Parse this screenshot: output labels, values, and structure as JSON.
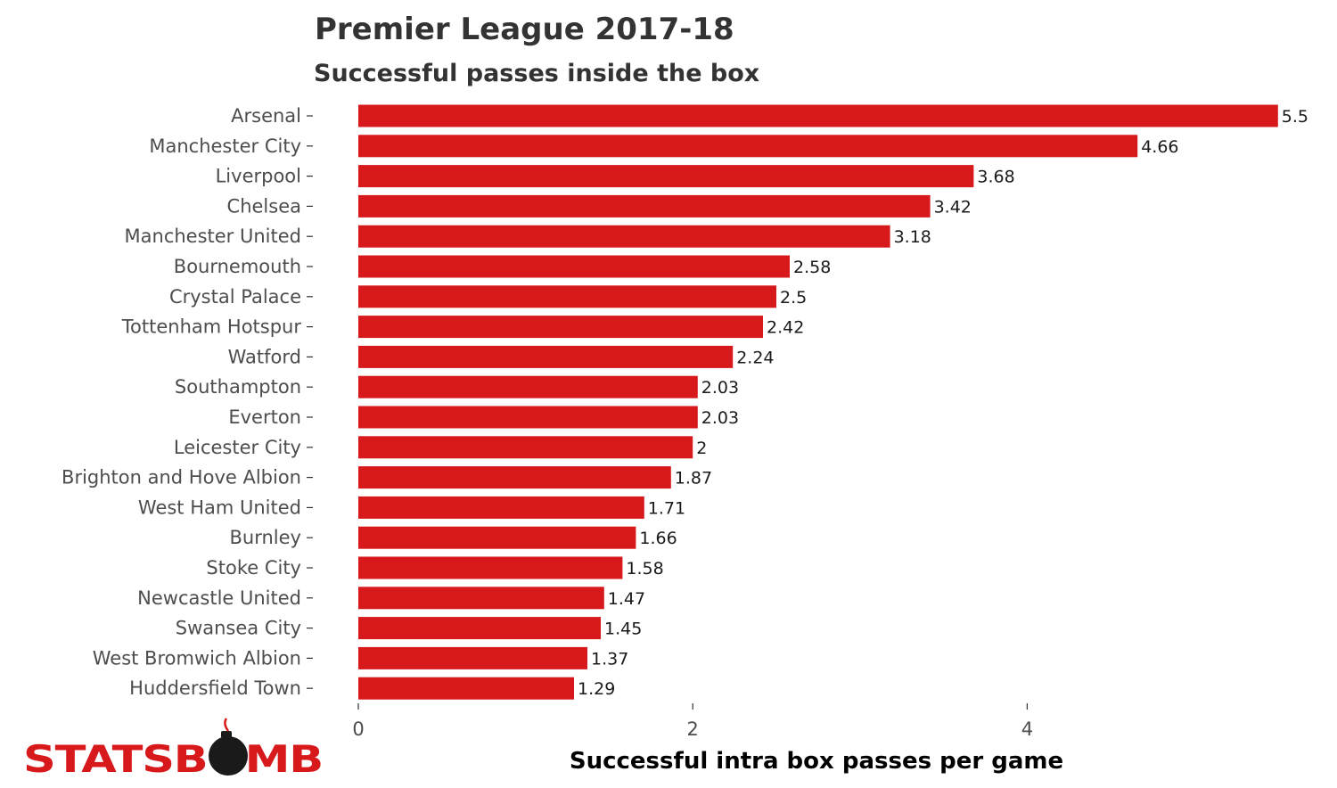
{
  "chart_data": {
    "type": "bar",
    "orientation": "horizontal",
    "title": "Premier League 2017-18",
    "subtitle": "Successful passes inside the box",
    "xlabel": "Successful intra box passes per game",
    "ylabel": "",
    "xlim": [
      0,
      5.5
    ],
    "x_ticks": [
      0,
      2,
      4
    ],
    "grid": false,
    "legend": "none",
    "bar_color": "#d7191c",
    "categories": [
      "Arsenal",
      "Manchester City",
      "Liverpool",
      "Chelsea",
      "Manchester United",
      "Bournemouth",
      "Crystal Palace",
      "Tottenham Hotspur",
      "Watford",
      "Southampton",
      "Everton",
      "Leicester City",
      "Brighton and Hove Albion",
      "West Ham United",
      "Burnley",
      "Stoke City",
      "Newcastle United",
      "Swansea City",
      "West Bromwich Albion",
      "Huddersfield Town"
    ],
    "values": [
      5.5,
      4.66,
      3.68,
      3.42,
      3.18,
      2.58,
      2.5,
      2.42,
      2.24,
      2.03,
      2.03,
      2,
      1.87,
      1.71,
      1.66,
      1.58,
      1.47,
      1.45,
      1.37,
      1.29
    ],
    "value_labels": [
      "5.5",
      "4.66",
      "3.68",
      "3.42",
      "3.18",
      "2.58",
      "2.5",
      "2.42",
      "2.24",
      "2.03",
      "2.03",
      "2",
      "1.87",
      "1.71",
      "1.66",
      "1.58",
      "1.47",
      "1.45",
      "1.37",
      "1.29"
    ]
  },
  "logo": {
    "text": "STATSBOMB",
    "color": "#d7191c",
    "bomb_color": "#1a1a1a",
    "icon": "bomb-icon"
  }
}
